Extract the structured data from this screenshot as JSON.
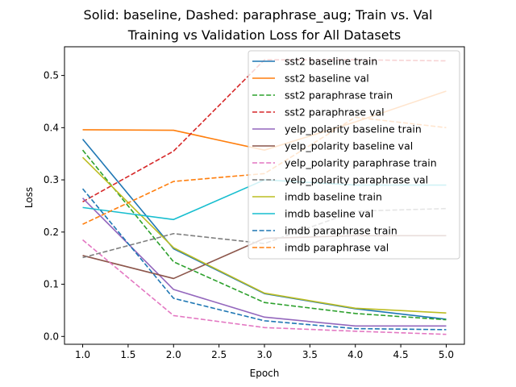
{
  "chart_data": {
    "type": "line",
    "suptitle": "Solid: baseline, Dashed: paraphrase_aug; Train vs. Val",
    "title": "Training vs Validation Loss for All Datasets",
    "xlabel": "Epoch",
    "ylabel": "Loss",
    "xlim": [
      0.8,
      5.2
    ],
    "ylim": [
      -0.015,
      0.555
    ],
    "xticks": [
      1.0,
      1.5,
      2.0,
      2.5,
      3.0,
      3.5,
      4.0,
      4.5,
      5.0
    ],
    "xtick_labels": [
      "1.0",
      "1.5",
      "2.0",
      "2.5",
      "3.0",
      "3.5",
      "4.0",
      "4.5",
      "5.0"
    ],
    "yticks": [
      0.0,
      0.1,
      0.2,
      0.3,
      0.4,
      0.5
    ],
    "ytick_labels": [
      "0.0",
      "0.1",
      "0.2",
      "0.3",
      "0.4",
      "0.5"
    ],
    "grid": false,
    "legend_position": "top-right",
    "x": [
      1,
      2,
      3,
      4,
      5
    ],
    "series": [
      {
        "name": "sst2 baseline train",
        "color": "#1f77b4",
        "dash": "solid",
        "values": [
          0.378,
          0.168,
          0.082,
          0.053,
          0.033
        ]
      },
      {
        "name": "sst2 baseline val",
        "color": "#ff7f0e",
        "dash": "solid",
        "values": [
          0.396,
          0.395,
          0.357,
          0.411,
          0.47
        ]
      },
      {
        "name": "sst2 paraphrase train",
        "color": "#2ca02c",
        "dash": "dashed",
        "values": [
          0.357,
          0.143,
          0.065,
          0.044,
          0.032
        ]
      },
      {
        "name": "sst2 paraphrase val",
        "color": "#d62728",
        "dash": "dashed",
        "values": [
          0.258,
          0.355,
          0.53,
          0.53,
          0.528
        ]
      },
      {
        "name": "yelp_polarity baseline train",
        "color": "#9467bd",
        "dash": "solid",
        "values": [
          0.265,
          0.09,
          0.037,
          0.02,
          0.02
        ]
      },
      {
        "name": "yelp_polarity baseline val",
        "color": "#8c564b",
        "dash": "solid",
        "values": [
          0.155,
          0.111,
          0.188,
          0.193,
          0.193
        ]
      },
      {
        "name": "yelp_polarity paraphrase train",
        "color": "#e377c2",
        "dash": "dashed",
        "values": [
          0.185,
          0.04,
          0.017,
          0.01,
          0.004
        ]
      },
      {
        "name": "yelp_polarity paraphrase val",
        "color": "#7f7f7f",
        "dash": "dashed",
        "values": [
          0.151,
          0.197,
          0.178,
          0.24,
          0.245
        ]
      },
      {
        "name": "imdb baseline train",
        "color": "#bcbd22",
        "dash": "solid",
        "values": [
          0.343,
          0.17,
          0.083,
          0.054,
          0.045
        ]
      },
      {
        "name": "imdb baseline val",
        "color": "#17becf",
        "dash": "solid",
        "values": [
          0.247,
          0.224,
          0.3,
          0.29,
          0.29
        ]
      },
      {
        "name": "imdb paraphrase train",
        "color": "#1f77b4",
        "dash": "dashed",
        "values": [
          0.283,
          0.073,
          0.03,
          0.015,
          0.013
        ]
      },
      {
        "name": "imdb paraphrase val",
        "color": "#ff7f0e",
        "dash": "dashed",
        "values": [
          0.215,
          0.297,
          0.312,
          0.42,
          0.4
        ]
      }
    ]
  }
}
